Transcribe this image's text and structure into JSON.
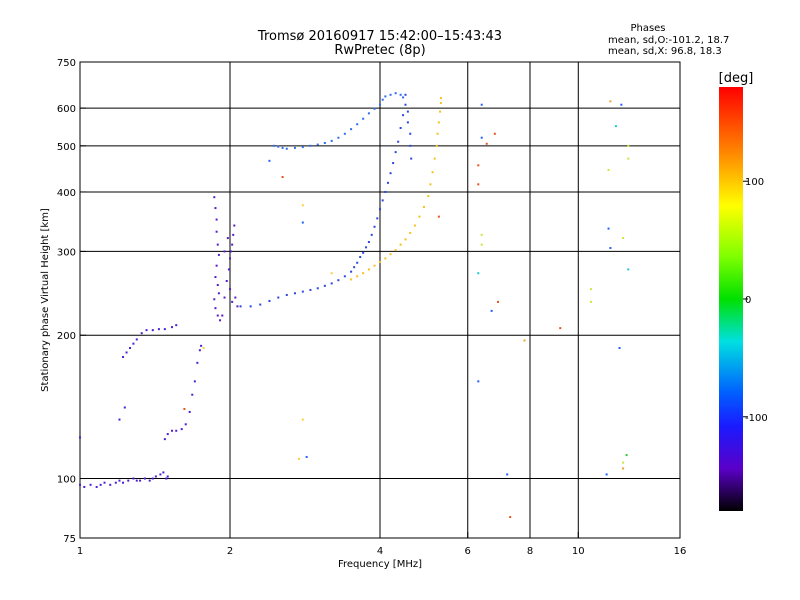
{
  "chart_data": {
    "type": "scatter",
    "title": "Tromsø 20160917 15:42:00–15:43:43",
    "subtitle": "RwPretec (8p)",
    "xlabel": "Frequency [MHz]",
    "ylabel": "Stationary phase Virtual Height [km]",
    "x_scale": "log",
    "y_scale": "log",
    "xlim": [
      1,
      16
    ],
    "ylim": [
      75,
      750
    ],
    "x_ticks": [
      1,
      2,
      4,
      6,
      8,
      10,
      16
    ],
    "y_ticks": [
      75,
      100,
      200,
      300,
      400,
      500,
      600,
      750
    ],
    "x_grid": [
      2,
      4,
      6,
      8,
      10
    ],
    "y_grid": [
      100,
      200,
      300,
      400,
      500,
      600
    ],
    "grid": true,
    "colorbar": {
      "label": "[deg]",
      "min": -180,
      "max": 180,
      "ticks": [
        100,
        0,
        -100
      ]
    },
    "stats": {
      "header": "Phases",
      "line_o": "mean, sd,O:-101.2, 18.7",
      "line_x": "mean, sd,X:  96.8, 18.3"
    },
    "series": [
      {
        "color": "#4b1fd6",
        "points": [
          [
            1.0,
            97
          ],
          [
            1.02,
            96
          ],
          [
            1.05,
            97
          ],
          [
            1.08,
            96
          ],
          [
            1.1,
            97
          ],
          [
            1.12,
            98
          ],
          [
            1.15,
            97
          ],
          [
            1.18,
            98
          ],
          [
            1.2,
            99
          ],
          [
            1.22,
            98
          ],
          [
            1.25,
            99
          ],
          [
            1.28,
            100
          ],
          [
            1.3,
            99
          ],
          [
            1.32,
            99
          ],
          [
            1.35,
            100
          ],
          [
            1.38,
            99
          ],
          [
            1.4,
            100
          ],
          [
            1.42,
            101
          ],
          [
            1.45,
            102
          ],
          [
            1.47,
            103
          ],
          [
            1.49,
            100
          ],
          [
            1.5,
            101
          ],
          [
            1.0,
            122
          ],
          [
            1.2,
            133
          ],
          [
            1.23,
            141
          ],
          [
            1.22,
            180
          ],
          [
            1.24,
            184
          ],
          [
            1.26,
            188
          ],
          [
            1.28,
            192
          ],
          [
            1.3,
            196
          ],
          [
            1.33,
            202
          ],
          [
            1.36,
            205
          ],
          [
            1.4,
            205
          ],
          [
            1.44,
            206
          ],
          [
            1.48,
            206
          ],
          [
            1.53,
            208
          ],
          [
            1.56,
            210
          ],
          [
            1.48,
            121
          ],
          [
            1.5,
            124
          ],
          [
            1.53,
            126
          ],
          [
            1.56,
            126
          ],
          [
            1.6,
            127
          ],
          [
            1.63,
            130
          ],
          [
            1.66,
            138
          ],
          [
            1.68,
            150
          ],
          [
            1.7,
            160
          ],
          [
            1.72,
            175
          ],
          [
            1.74,
            186
          ],
          [
            1.75,
            190
          ]
        ]
      },
      {
        "color": "#5a1bc8",
        "points": [
          [
            1.86,
            390
          ],
          [
            1.87,
            370
          ],
          [
            1.88,
            350
          ],
          [
            1.88,
            330
          ],
          [
            1.89,
            310
          ],
          [
            1.9,
            295
          ],
          [
            1.88,
            280
          ],
          [
            1.87,
            265
          ],
          [
            1.89,
            255
          ],
          [
            1.9,
            245
          ],
          [
            1.86,
            238
          ],
          [
            1.87,
            228
          ],
          [
            1.89,
            220
          ],
          [
            1.91,
            215
          ],
          [
            1.93,
            220
          ],
          [
            1.95,
            240
          ],
          [
            1.97,
            260
          ],
          [
            1.99,
            275
          ],
          [
            2.0,
            290
          ],
          [
            2.01,
            300
          ],
          [
            2.02,
            310
          ],
          [
            2.03,
            325
          ],
          [
            2.04,
            340
          ],
          [
            2.0,
            250
          ],
          [
            2.02,
            235
          ],
          [
            2.05,
            240
          ],
          [
            2.07,
            230
          ],
          [
            1.95,
            300
          ],
          [
            1.98,
            320
          ]
        ]
      },
      {
        "color": "#2b46e0",
        "points": [
          [
            2.1,
            230
          ],
          [
            2.2,
            230
          ],
          [
            2.3,
            232
          ],
          [
            2.4,
            236
          ],
          [
            2.5,
            240
          ],
          [
            2.6,
            243
          ],
          [
            2.7,
            245
          ],
          [
            2.8,
            247
          ],
          [
            2.9,
            249
          ],
          [
            3.0,
            251
          ],
          [
            3.1,
            254
          ],
          [
            3.2,
            257
          ],
          [
            3.3,
            261
          ],
          [
            3.4,
            266
          ],
          [
            3.5,
            272
          ],
          [
            3.55,
            278
          ],
          [
            3.6,
            284
          ],
          [
            3.65,
            292
          ],
          [
            3.7,
            298
          ],
          [
            3.75,
            306
          ],
          [
            3.8,
            314
          ],
          [
            3.85,
            325
          ],
          [
            3.9,
            338
          ],
          [
            3.95,
            352
          ],
          [
            4.0,
            368
          ],
          [
            4.05,
            384
          ],
          [
            4.1,
            400
          ],
          [
            4.15,
            418
          ],
          [
            4.2,
            438
          ],
          [
            4.25,
            460
          ],
          [
            4.3,
            485
          ],
          [
            4.35,
            510
          ],
          [
            4.4,
            545
          ],
          [
            4.45,
            580
          ],
          [
            4.5,
            610
          ],
          [
            4.5,
            640
          ],
          [
            4.55,
            590
          ],
          [
            4.55,
            560
          ],
          [
            4.6,
            530
          ],
          [
            4.6,
            500
          ],
          [
            4.62,
            470
          ]
        ]
      },
      {
        "color": "#2f6bef",
        "points": [
          [
            2.45,
            500
          ],
          [
            2.5,
            498
          ],
          [
            2.55,
            495
          ],
          [
            2.6,
            493
          ],
          [
            2.7,
            495
          ],
          [
            2.8,
            497
          ],
          [
            2.9,
            500
          ],
          [
            3.0,
            503
          ],
          [
            3.1,
            507
          ],
          [
            3.2,
            512
          ],
          [
            3.3,
            520
          ],
          [
            3.4,
            530
          ],
          [
            3.5,
            542
          ],
          [
            3.6,
            555
          ],
          [
            3.7,
            570
          ],
          [
            3.8,
            585
          ],
          [
            3.9,
            598
          ],
          [
            4.0,
            610
          ],
          [
            4.05,
            625
          ],
          [
            4.1,
            635
          ],
          [
            4.2,
            640
          ],
          [
            4.3,
            645
          ],
          [
            4.4,
            640
          ],
          [
            4.45,
            632
          ]
        ]
      },
      {
        "color": "#f3c21b",
        "points": [
          [
            3.5,
            262
          ],
          [
            3.6,
            266
          ],
          [
            3.7,
            270
          ],
          [
            3.8,
            275
          ],
          [
            3.9,
            280
          ],
          [
            4.0,
            285
          ],
          [
            4.1,
            290
          ],
          [
            4.2,
            296
          ],
          [
            4.3,
            302
          ],
          [
            4.4,
            310
          ],
          [
            4.5,
            318
          ],
          [
            4.6,
            328
          ],
          [
            4.7,
            340
          ],
          [
            4.8,
            355
          ],
          [
            4.9,
            372
          ],
          [
            5.0,
            392
          ],
          [
            5.05,
            415
          ],
          [
            5.1,
            440
          ],
          [
            5.15,
            470
          ],
          [
            5.2,
            500
          ],
          [
            5.22,
            530
          ],
          [
            5.25,
            560
          ],
          [
            5.28,
            590
          ],
          [
            5.3,
            615
          ],
          [
            5.3,
            630
          ]
        ]
      },
      {
        "color": "#f5d23c",
        "points": [
          [
            2.8,
            375
          ],
          [
            3.2,
            270
          ],
          [
            2.8,
            133
          ],
          [
            2.75,
            110
          ],
          [
            1.77,
            188
          ]
        ]
      },
      {
        "color": "#e8521f",
        "points": [
          [
            1.62,
            140
          ],
          [
            2.55,
            430
          ],
          [
            5.25,
            355
          ],
          [
            6.3,
            455
          ],
          [
            6.3,
            415
          ],
          [
            6.55,
            505
          ],
          [
            6.8,
            530
          ],
          [
            6.9,
            235
          ],
          [
            7.3,
            83
          ],
          [
            9.2,
            207
          ]
        ]
      },
      {
        "color": "#2060ff",
        "points": [
          [
            2.4,
            465
          ],
          [
            2.8,
            345
          ],
          [
            2.85,
            111
          ],
          [
            6.4,
            610
          ],
          [
            6.4,
            520
          ],
          [
            6.7,
            225
          ],
          [
            7.2,
            102
          ],
          [
            6.3,
            160
          ],
          [
            11.5,
            335
          ],
          [
            11.6,
            305
          ],
          [
            11.4,
            102
          ],
          [
            12.2,
            610
          ],
          [
            12.1,
            188
          ]
        ]
      },
      {
        "color": "#19c7d4",
        "points": [
          [
            6.3,
            270
          ],
          [
            11.9,
            550
          ],
          [
            12.6,
            275
          ]
        ]
      },
      {
        "color": "#cfe43a",
        "points": [
          [
            6.4,
            325
          ],
          [
            6.4,
            310
          ],
          [
            10.6,
            250
          ],
          [
            10.6,
            235
          ],
          [
            11.5,
            445
          ],
          [
            12.3,
            320
          ],
          [
            12.6,
            500
          ],
          [
            12.6,
            470
          ],
          [
            12.3,
            108
          ]
        ]
      },
      {
        "color": "#f2a02a",
        "points": [
          [
            7.8,
            195
          ],
          [
            11.6,
            620
          ],
          [
            12.3,
            105
          ]
        ]
      },
      {
        "color": "#2ecc2e",
        "points": [
          [
            12.5,
            112
          ]
        ]
      }
    ]
  }
}
